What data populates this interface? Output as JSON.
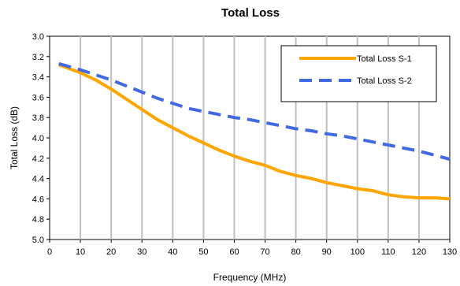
{
  "chart_data": {
    "type": "line",
    "title": "Total Loss",
    "xlabel": "Frequency (MHz)",
    "ylabel": "Total Loss (dB)",
    "xlim": [
      0,
      130
    ],
    "ylim": [
      3.0,
      5.0
    ],
    "y_inverted": true,
    "x_ticks": [
      "0",
      "10",
      "20",
      "30",
      "40",
      "50",
      "60",
      "70",
      "80",
      "90",
      "100",
      "110",
      "120",
      "130"
    ],
    "y_ticks": [
      "3.0",
      "3.2",
      "3.4",
      "3.6",
      "3.8",
      "4.0",
      "4.2",
      "4.4",
      "4.6",
      "4.8",
      "5.0"
    ],
    "grid": {
      "vertical": true,
      "horizontal": false
    },
    "legend_position": "top-right",
    "series": [
      {
        "name": "Total Loss S-1",
        "color": "#FFA500",
        "style": "solid",
        "x": [
          3,
          10,
          15,
          20,
          25,
          30,
          35,
          40,
          45,
          50,
          55,
          60,
          65,
          70,
          75,
          80,
          85,
          90,
          95,
          100,
          105,
          110,
          115,
          120,
          125,
          130
        ],
        "y": [
          3.28,
          3.36,
          3.43,
          3.52,
          3.62,
          3.72,
          3.82,
          3.9,
          3.98,
          4.05,
          4.12,
          4.18,
          4.23,
          4.27,
          4.33,
          4.37,
          4.4,
          4.44,
          4.47,
          4.5,
          4.52,
          4.56,
          4.58,
          4.59,
          4.59,
          4.6
        ]
      },
      {
        "name": "Total Loss S-2",
        "color": "#4169E1",
        "style": "dashed",
        "x": [
          3,
          10,
          20,
          25,
          30,
          35,
          40,
          45,
          50,
          55,
          60,
          65,
          70,
          75,
          80,
          85,
          90,
          95,
          100,
          105,
          110,
          115,
          120,
          125,
          130
        ],
        "y": [
          3.27,
          3.33,
          3.43,
          3.49,
          3.55,
          3.61,
          3.66,
          3.71,
          3.74,
          3.77,
          3.8,
          3.82,
          3.85,
          3.88,
          3.91,
          3.93,
          3.96,
          3.98,
          4.01,
          4.04,
          4.07,
          4.1,
          4.13,
          4.17,
          4.21
        ]
      }
    ]
  }
}
